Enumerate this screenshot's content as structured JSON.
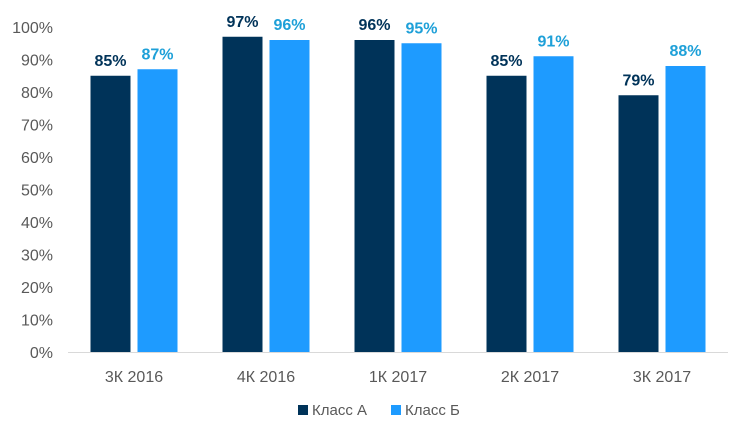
{
  "chart_data": {
    "type": "bar",
    "title": "",
    "xlabel": "",
    "ylabel": "",
    "categories": [
      "3К 2016",
      "4К 2016",
      "1К 2017",
      "2К 2017",
      "3К 2017"
    ],
    "series": [
      {
        "name": "Класс А",
        "values": [
          85,
          97,
          96,
          85,
          79
        ],
        "color": "#003359",
        "label_color": "#003359"
      },
      {
        "name": "Класс Б",
        "values": [
          87,
          96,
          95,
          91,
          88
        ],
        "color": "#1e9bff",
        "label_color": "#1ea0d8"
      }
    ],
    "ylim": [
      0,
      100
    ],
    "yticks": [
      0,
      10,
      20,
      30,
      40,
      50,
      60,
      70,
      80,
      90,
      100
    ],
    "ytick_labels": [
      "0%",
      "10%",
      "20%",
      "30%",
      "40%",
      "50%",
      "60%",
      "70%",
      "80%",
      "90%",
      "100%"
    ],
    "value_labels": [
      [
        "85%",
        "97%",
        "96%",
        "85%",
        "79%"
      ],
      [
        "87%",
        "96%",
        "95%",
        "91%",
        "88%"
      ]
    ],
    "grid": false,
    "legend_position": "bottom"
  }
}
